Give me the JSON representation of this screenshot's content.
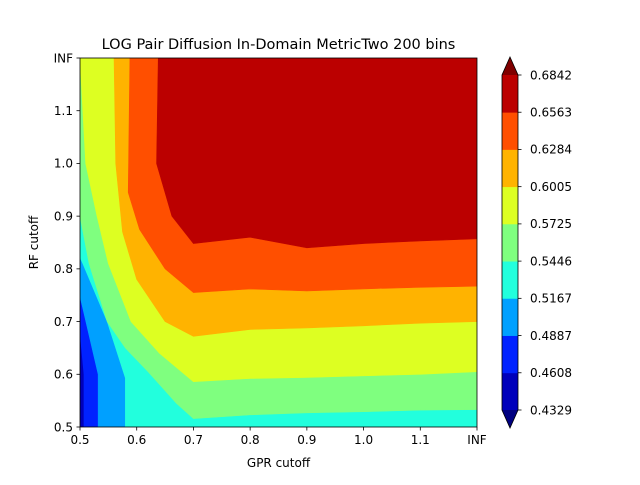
{
  "chart_data": {
    "type": "heatmap",
    "subtype": "filled-contour",
    "title": "LOG Pair Diffusion In-Domain MetricTwo 200 bins",
    "xlabel": "GPR cutoff",
    "ylabel": "RF cutoff",
    "x_tick_labels": [
      "0.5",
      "0.6",
      "0.7",
      "0.8",
      "0.9",
      "1.0",
      "1.1",
      "INF"
    ],
    "y_tick_labels": [
      "0.5",
      "0.6",
      "0.7",
      "0.8",
      "0.9",
      "1.0",
      "1.1",
      "INF"
    ],
    "x_ticks": [
      0.5,
      0.6,
      0.7,
      0.8,
      0.9,
      1.0,
      1.1,
      1.2
    ],
    "y_ticks": [
      0.5,
      0.6,
      0.7,
      0.8,
      0.9,
      1.0,
      1.1,
      1.2
    ],
    "xlim": [
      0.5,
      1.2
    ],
    "ylim": [
      0.5,
      1.2
    ],
    "colorbar": {
      "levels": [
        0.4329,
        0.4608,
        0.4887,
        0.5167,
        0.5446,
        0.5725,
        0.6005,
        0.6284,
        0.6563,
        0.6842
      ],
      "tick_labels": [
        "0.4329",
        "0.4608",
        "0.4887",
        "0.5167",
        "0.5446",
        "0.5725",
        "0.6005",
        "0.6284",
        "0.6563",
        "0.6842"
      ],
      "colors": [
        "#0000bb",
        "#0022ff",
        "#00a0ff",
        "#22ffdd",
        "#7fff7f",
        "#ddff22",
        "#ffb300",
        "#ff4f00",
        "#bb0000"
      ],
      "under_color": "#000080",
      "over_color": "#800000",
      "extend": "both"
    },
    "bands": [
      {
        "level_index": 0,
        "points": [
          [
            0.5,
            0.5
          ],
          [
            0.507,
            0.5
          ],
          [
            0.507,
            0.6
          ],
          [
            0.5,
            0.68
          ]
        ]
      },
      {
        "level_index": 1,
        "points": [
          [
            0.507,
            0.5
          ],
          [
            0.532,
            0.5
          ],
          [
            0.532,
            0.6
          ],
          [
            0.5,
            0.748
          ],
          [
            0.5,
            0.68
          ],
          [
            0.507,
            0.6
          ]
        ]
      },
      {
        "level_index": 2,
        "points": [
          [
            0.532,
            0.5
          ],
          [
            0.58,
            0.5
          ],
          [
            0.58,
            0.593
          ],
          [
            0.548,
            0.7
          ],
          [
            0.505,
            0.81
          ],
          [
            0.5,
            0.822
          ],
          [
            0.5,
            0.748
          ],
          [
            0.532,
            0.6
          ]
        ]
      },
      {
        "level_index": 3,
        "points": [
          [
            0.58,
            0.5
          ],
          [
            1.2,
            0.5
          ],
          [
            1.2,
            0.533
          ],
          [
            1.1,
            0.532
          ],
          [
            1.0,
            0.529
          ],
          [
            0.9,
            0.527
          ],
          [
            0.8,
            0.523
          ],
          [
            0.7,
            0.516
          ],
          [
            0.67,
            0.545
          ],
          [
            0.62,
            0.605
          ],
          [
            0.58,
            0.65
          ],
          [
            0.548,
            0.7
          ],
          [
            0.516,
            0.81
          ],
          [
            0.5,
            0.9
          ],
          [
            0.5,
            0.822
          ],
          [
            0.505,
            0.81
          ],
          [
            0.548,
            0.7
          ],
          [
            0.58,
            0.593
          ]
        ]
      },
      {
        "level_index": 4,
        "points": [
          [
            1.2,
            0.533
          ],
          [
            1.2,
            0.605
          ],
          [
            1.1,
            0.6
          ],
          [
            1.0,
            0.597
          ],
          [
            0.9,
            0.594
          ],
          [
            0.8,
            0.592
          ],
          [
            0.7,
            0.586
          ],
          [
            0.64,
            0.64
          ],
          [
            0.59,
            0.7
          ],
          [
            0.55,
            0.81
          ],
          [
            0.53,
            0.9
          ],
          [
            0.51,
            1.0
          ],
          [
            0.5,
            1.2
          ],
          [
            0.5,
            0.9
          ],
          [
            0.516,
            0.81
          ],
          [
            0.548,
            0.7
          ],
          [
            0.58,
            0.65
          ],
          [
            0.62,
            0.605
          ],
          [
            0.67,
            0.545
          ],
          [
            0.7,
            0.516
          ],
          [
            0.8,
            0.523
          ],
          [
            0.9,
            0.527
          ],
          [
            1.0,
            0.529
          ],
          [
            1.1,
            0.532
          ]
        ]
      },
      {
        "level_index": 5,
        "points": [
          [
            1.2,
            0.605
          ],
          [
            1.2,
            0.7
          ],
          [
            1.1,
            0.697
          ],
          [
            1.0,
            0.692
          ],
          [
            0.9,
            0.688
          ],
          [
            0.8,
            0.685
          ],
          [
            0.7,
            0.672
          ],
          [
            0.65,
            0.7
          ],
          [
            0.6,
            0.78
          ],
          [
            0.575,
            0.87
          ],
          [
            0.563,
            1.0
          ],
          [
            0.56,
            1.2
          ],
          [
            0.5,
            1.2
          ],
          [
            0.51,
            1.0
          ],
          [
            0.53,
            0.9
          ],
          [
            0.55,
            0.81
          ],
          [
            0.59,
            0.7
          ],
          [
            0.64,
            0.64
          ],
          [
            0.7,
            0.586
          ],
          [
            0.8,
            0.592
          ],
          [
            0.9,
            0.594
          ],
          [
            1.0,
            0.597
          ],
          [
            1.1,
            0.6
          ]
        ]
      },
      {
        "level_index": 6,
        "points": [
          [
            1.2,
            0.7
          ],
          [
            1.2,
            0.767
          ],
          [
            1.1,
            0.765
          ],
          [
            1.0,
            0.762
          ],
          [
            0.9,
            0.758
          ],
          [
            0.8,
            0.762
          ],
          [
            0.7,
            0.755
          ],
          [
            0.65,
            0.8
          ],
          [
            0.605,
            0.875
          ],
          [
            0.585,
            0.945
          ],
          [
            0.588,
            1.2
          ],
          [
            0.56,
            1.2
          ],
          [
            0.563,
            1.0
          ],
          [
            0.575,
            0.87
          ],
          [
            0.6,
            0.78
          ],
          [
            0.65,
            0.7
          ],
          [
            0.7,
            0.672
          ],
          [
            0.8,
            0.685
          ],
          [
            0.9,
            0.688
          ],
          [
            1.0,
            0.692
          ],
          [
            1.1,
            0.697
          ]
        ]
      },
      {
        "level_index": 7,
        "points": [
          [
            1.2,
            0.767
          ],
          [
            1.2,
            0.857
          ],
          [
            1.1,
            0.853
          ],
          [
            1.0,
            0.848
          ],
          [
            0.9,
            0.84
          ],
          [
            0.8,
            0.86
          ],
          [
            0.7,
            0.848
          ],
          [
            0.662,
            0.9
          ],
          [
            0.635,
            1.0
          ],
          [
            0.638,
            1.2
          ],
          [
            0.588,
            1.2
          ],
          [
            0.585,
            0.945
          ],
          [
            0.605,
            0.875
          ],
          [
            0.65,
            0.8
          ],
          [
            0.7,
            0.755
          ],
          [
            0.8,
            0.762
          ],
          [
            0.9,
            0.758
          ],
          [
            1.0,
            0.762
          ],
          [
            1.1,
            0.765
          ]
        ]
      },
      {
        "level_index": 8,
        "points": [
          [
            1.2,
            0.857
          ],
          [
            1.2,
            1.2
          ],
          [
            0.638,
            1.2
          ],
          [
            0.635,
            1.0
          ],
          [
            0.662,
            0.9
          ],
          [
            0.7,
            0.848
          ],
          [
            0.8,
            0.86
          ],
          [
            0.9,
            0.84
          ],
          [
            1.0,
            0.848
          ],
          [
            1.1,
            0.853
          ]
        ]
      }
    ]
  }
}
